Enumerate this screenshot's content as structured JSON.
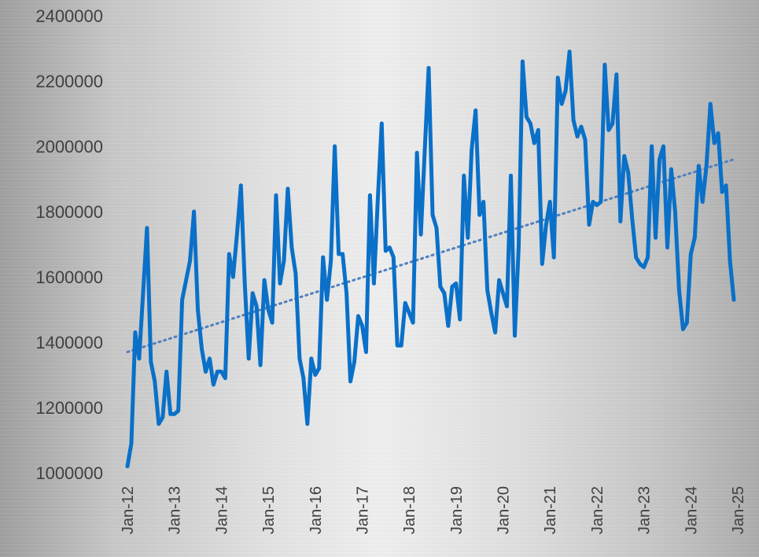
{
  "chart_data": {
    "type": "line",
    "title": "",
    "xlabel": "",
    "ylabel": "",
    "ylim": [
      1000000,
      2400000
    ],
    "y_ticks": [
      "1000000",
      "1200000",
      "1400000",
      "1600000",
      "1800000",
      "2000000",
      "2200000",
      "2400000"
    ],
    "x_ticks": [
      "Jan-12",
      "Jan-13",
      "Jan-14",
      "Jan-15",
      "Jan-16",
      "Jan-17",
      "Jan-18",
      "Jan-19",
      "Jan-20",
      "Jan-21",
      "Jan-22",
      "Jan-23",
      "Jan-24",
      "Jan-25"
    ],
    "grid": false,
    "legend": "none",
    "colors": {
      "series": "#0a70c8",
      "trend": "#4f7fbf"
    },
    "series": [
      {
        "start": "Jan-12",
        "frequency": "monthly",
        "values": [
          1020000,
          1090000,
          1430000,
          1350000,
          1550000,
          1750000,
          1340000,
          1280000,
          1150000,
          1170000,
          1310000,
          1180000,
          1180000,
          1190000,
          1530000,
          1590000,
          1650000,
          1800000,
          1500000,
          1380000,
          1310000,
          1350000,
          1270000,
          1310000,
          1310000,
          1290000,
          1670000,
          1600000,
          1730000,
          1880000,
          1580000,
          1350000,
          1550000,
          1510000,
          1330000,
          1590000,
          1500000,
          1460000,
          1850000,
          1580000,
          1650000,
          1870000,
          1690000,
          1610000,
          1350000,
          1290000,
          1150000,
          1350000,
          1300000,
          1320000,
          1660000,
          1530000,
          1650000,
          2000000,
          1670000,
          1670000,
          1550000,
          1280000,
          1340000,
          1480000,
          1450000,
          1370000,
          1850000,
          1580000,
          1840000,
          2070000,
          1680000,
          1690000,
          1660000,
          1390000,
          1390000,
          1520000,
          1490000,
          1460000,
          1980000,
          1730000,
          1990000,
          2240000,
          1790000,
          1750000,
          1570000,
          1550000,
          1450000,
          1570000,
          1580000,
          1470000,
          1910000,
          1720000,
          1990000,
          2110000,
          1790000,
          1830000,
          1560000,
          1490000,
          1430000,
          1590000,
          1550000,
          1510000,
          1910000,
          1420000,
          1690000,
          2260000,
          2090000,
          2070000,
          2010000,
          2050000,
          1640000,
          1760000,
          1830000,
          1660000,
          2210000,
          2130000,
          2170000,
          2290000,
          2080000,
          2030000,
          2060000,
          2020000,
          1760000,
          1830000,
          1820000,
          1830000,
          2250000,
          2050000,
          2070000,
          2220000,
          1770000,
          1970000,
          1920000,
          1780000,
          1660000,
          1640000,
          1630000,
          1660000,
          2000000,
          1720000,
          1960000,
          2000000,
          1690000,
          1930000,
          1800000,
          1560000,
          1440000,
          1460000,
          1670000,
          1720000,
          1940000,
          1830000,
          1940000,
          2130000,
          2010000,
          2040000,
          1860000,
          1880000,
          1650000,
          1530000
        ]
      }
    ],
    "trendline": {
      "type": "linear",
      "style": "dotted",
      "start": 1370000,
      "end": 1960000
    }
  }
}
